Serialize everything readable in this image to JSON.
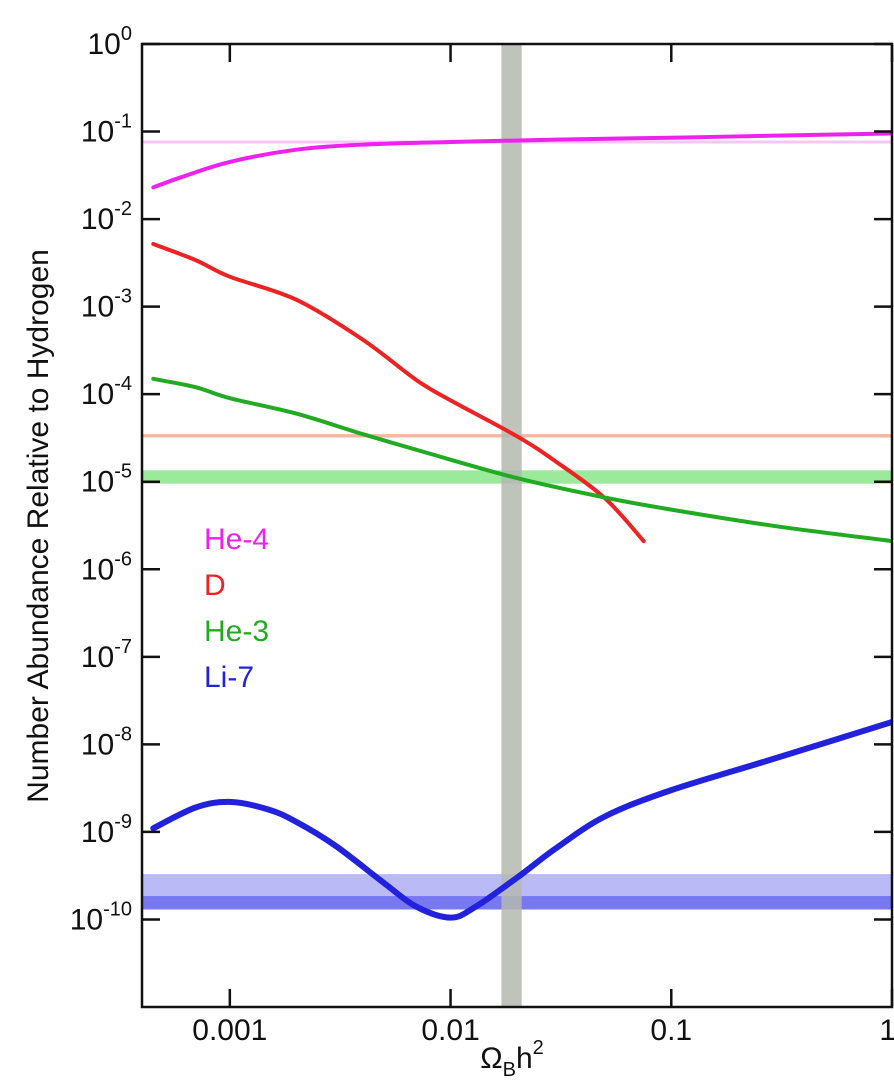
{
  "chart_data": {
    "type": "line",
    "title": "",
    "xlabel": {
      "main": "Ω",
      "sub": "B",
      "rest": "h",
      "sup": "2"
    },
    "ylabel": "Number Abundance Relative to Hydrogen",
    "x_scale": "log",
    "y_scale": "log",
    "xlim": [
      0.0004,
      1
    ],
    "ylim": [
      1e-11,
      1
    ],
    "x_ticks": [
      {
        "value": 0.001,
        "label": "0.001"
      },
      {
        "value": 0.01,
        "label": "0.01"
      },
      {
        "value": 0.1,
        "label": "0.1"
      },
      {
        "value": 1,
        "label": "1"
      }
    ],
    "y_ticks": [
      {
        "exp": 0,
        "base": "10",
        "sup": "0"
      },
      {
        "exp": -1,
        "base": "10",
        "sup": "-1"
      },
      {
        "exp": -2,
        "base": "10",
        "sup": "-2"
      },
      {
        "exp": -3,
        "base": "10",
        "sup": "-3"
      },
      {
        "exp": -4,
        "base": "10",
        "sup": "-4"
      },
      {
        "exp": -5,
        "base": "10",
        "sup": "-5"
      },
      {
        "exp": -6,
        "base": "10",
        "sup": "-6"
      },
      {
        "exp": -7,
        "base": "10",
        "sup": "-7"
      },
      {
        "exp": -8,
        "base": "10",
        "sup": "-8"
      },
      {
        "exp": -9,
        "base": "10",
        "sup": "-9"
      },
      {
        "exp": -10,
        "base": "10",
        "sup": "-10"
      }
    ],
    "grid": false,
    "legend_position": "middle-left",
    "series": [
      {
        "name": "He-4",
        "color": "#ee22ee",
        "width": 4,
        "points": [
          [
            0.00045,
            0.023
          ],
          [
            0.0006,
            0.03
          ],
          [
            0.001,
            0.045
          ],
          [
            0.002,
            0.062
          ],
          [
            0.004,
            0.071
          ],
          [
            0.01,
            0.076
          ],
          [
            0.03,
            0.081
          ],
          [
            0.1,
            0.085
          ],
          [
            0.3,
            0.09
          ],
          [
            1,
            0.095
          ]
        ]
      },
      {
        "name": "D",
        "color": "#ee2222",
        "width": 4,
        "points": [
          [
            0.00045,
            0.0052
          ],
          [
            0.0007,
            0.0034
          ],
          [
            0.001,
            0.0022
          ],
          [
            0.002,
            0.0012
          ],
          [
            0.004,
            0.00042
          ],
          [
            0.007,
            0.000145
          ],
          [
            0.01,
            8.5e-05
          ],
          [
            0.02,
            3.3e-05
          ],
          [
            0.03,
            1.7e-05
          ],
          [
            0.05,
            6.5e-06
          ],
          [
            0.075,
            2.1e-06
          ]
        ]
      },
      {
        "name": "He-3",
        "color": "#22aa22",
        "width": 4,
        "points": [
          [
            0.00045,
            0.00015
          ],
          [
            0.0007,
            0.00012
          ],
          [
            0.001,
            9e-05
          ],
          [
            0.002,
            6e-05
          ],
          [
            0.004,
            3.5e-05
          ],
          [
            0.008,
            2.1e-05
          ],
          [
            0.02,
            1.1e-05
          ],
          [
            0.05,
            6.6e-06
          ],
          [
            0.1,
            4.8e-06
          ],
          [
            0.3,
            3.1e-06
          ],
          [
            1,
            2.1e-06
          ]
        ]
      },
      {
        "name": "Li-7",
        "color": "#2222dd",
        "width": 6,
        "points": [
          [
            0.00045,
            1.1e-09
          ],
          [
            0.0007,
            1.9e-09
          ],
          [
            0.001,
            2.2e-09
          ],
          [
            0.0015,
            1.8e-09
          ],
          [
            0.002,
            1.3e-09
          ],
          [
            0.003,
            7e-10
          ],
          [
            0.005,
            2.6e-10
          ],
          [
            0.007,
            1.4e-10
          ],
          [
            0.01,
            1.05e-10
          ],
          [
            0.013,
            1.4e-10
          ],
          [
            0.02,
            3e-10
          ],
          [
            0.03,
            6.5e-10
          ],
          [
            0.05,
            1.5e-09
          ],
          [
            0.1,
            3e-09
          ],
          [
            0.3,
            7e-09
          ],
          [
            1,
            1.8e-08
          ]
        ]
      }
    ],
    "bands": [
      {
        "name": "He-4 observed",
        "color": "#ee99ee",
        "opacity": 0.55,
        "y": [
          0.073,
          0.079
        ]
      },
      {
        "name": "D observed",
        "color": "#f0a080",
        "opacity": 0.75,
        "y": [
          3.2e-05,
          3.5e-05
        ]
      },
      {
        "name": "He-3 observed",
        "color": "#66dd66",
        "opacity": 0.65,
        "y": [
          9.5e-06,
          1.35e-05
        ]
      },
      {
        "name": "Li-7 observed (wide)",
        "color": "#6666ee",
        "opacity": 0.45,
        "y": [
          1.3e-10,
          3.3e-10
        ]
      },
      {
        "name": "Li-7 observed",
        "color": "#5555ee",
        "opacity": 0.65,
        "y": [
          1.3e-10,
          1.85e-10
        ]
      }
    ],
    "vband": {
      "color": "#b4b8b0",
      "opacity": 0.85,
      "x": [
        0.017,
        0.021
      ]
    }
  }
}
